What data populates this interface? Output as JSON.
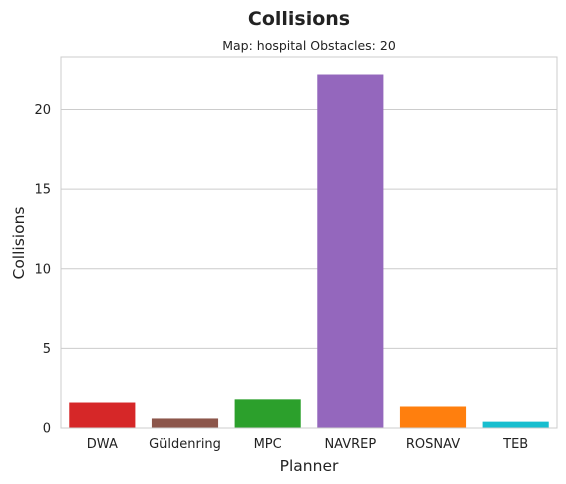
{
  "chart_data": {
    "type": "bar",
    "title": "Collisions",
    "subtitle": "Map: hospital Obstacles: 20",
    "xlabel": "Planner",
    "ylabel": "Collisions",
    "categories": [
      "DWA",
      "Güldenring",
      "MPC",
      "NAVREP",
      "ROSNAV",
      "TEB"
    ],
    "values": [
      1.6,
      0.6,
      1.8,
      22.2,
      1.35,
      0.4
    ],
    "colors": [
      "#d62728",
      "#8c564b",
      "#2ca02c",
      "#9467bd",
      "#ff7f0e",
      "#17becf"
    ],
    "ylim": [
      0,
      23.3
    ],
    "yticks": [
      0,
      5,
      10,
      15,
      20
    ],
    "grid": "y",
    "legend": "none"
  }
}
